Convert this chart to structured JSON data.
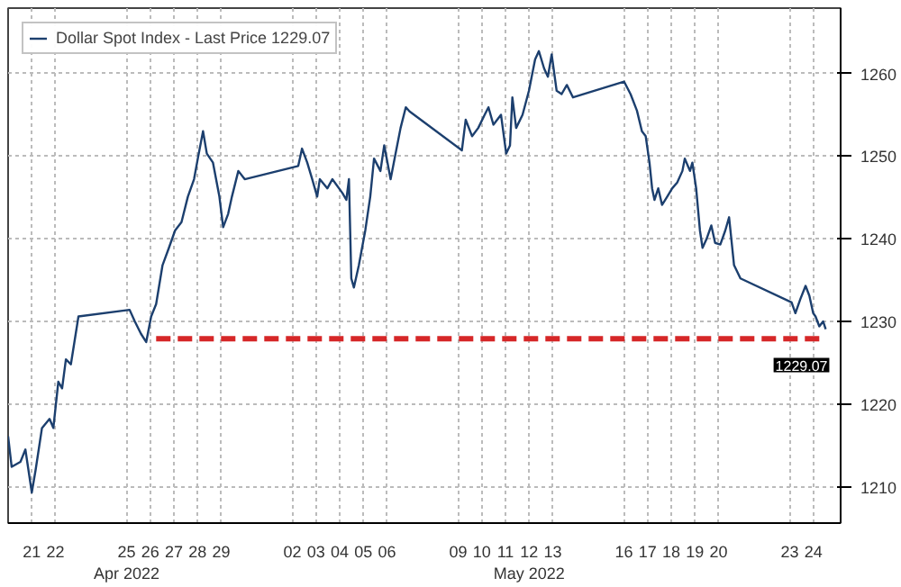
{
  "chart_data": {
    "type": "line",
    "xlim": [
      "2022-04-20T00:00",
      "2022-05-25T03:36"
    ],
    "ylim": [
      1205.6,
      1267.9
    ],
    "xticks": [
      {
        "value": "2022-04-21",
        "label": "21"
      },
      {
        "value": "2022-04-22",
        "label": "22"
      },
      {
        "value": "2022-04-25",
        "label": "25\nApr 2022"
      },
      {
        "value": "2022-04-26",
        "label": "26"
      },
      {
        "value": "2022-04-27",
        "label": "27"
      },
      {
        "value": "2022-04-28",
        "label": "28"
      },
      {
        "value": "2022-04-29",
        "label": "29"
      },
      {
        "value": "2022-05-02",
        "label": "02"
      },
      {
        "value": "2022-05-03",
        "label": "03"
      },
      {
        "value": "2022-05-04",
        "label": "04"
      },
      {
        "value": "2022-05-05",
        "label": "05"
      },
      {
        "value": "2022-05-06",
        "label": "06"
      },
      {
        "value": "2022-05-09",
        "label": "09"
      },
      {
        "value": "2022-05-10",
        "label": "10"
      },
      {
        "value": "2022-05-11",
        "label": "11"
      },
      {
        "value": "2022-05-12",
        "label": "12\nMay 2022"
      },
      {
        "value": "2022-05-13",
        "label": "13"
      },
      {
        "value": "2022-05-16",
        "label": "16"
      },
      {
        "value": "2022-05-17",
        "label": "17"
      },
      {
        "value": "2022-05-18",
        "label": "18"
      },
      {
        "value": "2022-05-19",
        "label": "19"
      },
      {
        "value": "2022-05-20",
        "label": "20"
      },
      {
        "value": "2022-05-23",
        "label": "23"
      },
      {
        "value": "2022-05-24",
        "label": "24"
      }
    ],
    "yticks": [
      1210,
      1220,
      1230,
      1240,
      1250,
      1260
    ],
    "grid": true,
    "legend": "top left",
    "series": [
      {
        "name": "Dollar Spot Index - Last Price 1229.07",
        "color": "#1c3f6e",
        "x": [
          "2022-04-20T00:00",
          "2022-04-20T03:36",
          "2022-04-20T12:29",
          "2022-04-20T17:31",
          "2022-04-21T00:00",
          "2022-04-21T03:50",
          "2022-04-21T10:19",
          "2022-04-21T18:00",
          "2022-04-21T21:50",
          "2022-04-22T02:53",
          "2022-04-22T06:43",
          "2022-04-22T10:34",
          "2022-04-22T15:36",
          "2022-04-22T23:17",
          "2022-04-25T03:07",
          "2022-04-25T08:24",
          "2022-04-25T14:38",
          "2022-04-25T19:55",
          "2022-04-26T00:58",
          "2022-04-26T06:00",
          "2022-04-26T12:29",
          "2022-04-26T18:58",
          "2022-04-27T01:12",
          "2022-04-27T07:41",
          "2022-04-27T14:10",
          "2022-04-27T20:24",
          "2022-04-28T00:14",
          "2022-04-28T05:31",
          "2022-04-28T09:22",
          "2022-04-28T15:36",
          "2022-04-28T22:05",
          "2022-04-29T01:55",
          "2022-04-29T06:58",
          "2022-04-29T10:48",
          "2022-04-29T17:17",
          "2022-04-29T23:46",
          "2022-05-02T06:00",
          "2022-05-02T09:50",
          "2022-05-02T15:07",
          "2022-05-02T20:10",
          "2022-05-03T01:12",
          "2022-05-03T03:50",
          "2022-05-03T11:31",
          "2022-05-03T16:34",
          "2022-05-04T02:53",
          "2022-05-04T06:43",
          "2022-05-04T09:22",
          "2022-05-04T11:46",
          "2022-05-04T14:24",
          "2022-05-04T19:26",
          "2022-05-05T01:55",
          "2022-05-05T06:58",
          "2022-05-05T10:48",
          "2022-05-05T17:17",
          "2022-05-05T21:07",
          "2022-05-06T03:36",
          "2022-05-06T08:38",
          "2022-05-06T13:41",
          "2022-05-06T18:58",
          "2022-05-06T22:48",
          "2022-05-09T03:50",
          "2022-05-09T07:41",
          "2022-05-09T14:10",
          "2022-05-09T20:24",
          "2022-05-10T02:53",
          "2022-05-10T06:43",
          "2022-05-10T11:46",
          "2022-05-10T19:26",
          "2022-05-11T00:43",
          "2022-05-11T04:34",
          "2022-05-11T06:58",
          "2022-05-11T10:48",
          "2022-05-11T17:17",
          "2022-05-11T23:46",
          "2022-05-12T06:00",
          "2022-05-12T09:50",
          "2022-05-12T15:07",
          "2022-05-12T18:58",
          "2022-05-12T22:48",
          "2022-05-13T03:50",
          "2022-05-13T08:53",
          "2022-05-13T14:10",
          "2022-05-13T20:24",
          "2022-05-16T00:14",
          "2022-05-16T06:43",
          "2022-05-16T13:12",
          "2022-05-16T18:14",
          "2022-05-16T22:05",
          "2022-05-17T01:55",
          "2022-05-17T04:34",
          "2022-05-17T06:58",
          "2022-05-17T10:48",
          "2022-05-17T14:38",
          "2022-05-17T19:55",
          "2022-05-18T00:58",
          "2022-05-18T06:00",
          "2022-05-18T11:17",
          "2022-05-18T13:41",
          "2022-05-18T18:58",
          "2022-05-18T21:22",
          "2022-05-19T01:12",
          "2022-05-19T05:02",
          "2022-05-19T07:41",
          "2022-05-19T11:31",
          "2022-05-19T16:34",
          "2022-05-19T20:24",
          "2022-05-20T01:41",
          "2022-05-20T06:43",
          "2022-05-20T10:34",
          "2022-05-20T15:36",
          "2022-05-20T22:05",
          "2022-05-23T01:55",
          "2022-05-23T05:46",
          "2022-05-23T10:48",
          "2022-05-23T16:05",
          "2022-05-23T19:55",
          "2022-05-23T23:46",
          "2022-05-24T02:10",
          "2022-05-24T06:00",
          "2022-05-24T09:50",
          "2022-05-24T12:29"
        ],
        "values": [
          1216.1,
          1212.4,
          1213.0,
          1214.5,
          1209.3,
          1212.0,
          1217.1,
          1218.2,
          1217.1,
          1222.7,
          1221.9,
          1225.4,
          1224.8,
          1230.6,
          1231.4,
          1230.0,
          1228.5,
          1227.5,
          1230.6,
          1232.1,
          1236.8,
          1238.9,
          1241.0,
          1242.0,
          1245.1,
          1247.2,
          1249.7,
          1253.0,
          1250.3,
          1249.2,
          1245.1,
          1241.4,
          1243.0,
          1245.1,
          1248.2,
          1247.2,
          1248.8,
          1250.9,
          1249.2,
          1247.2,
          1245.1,
          1247.2,
          1246.1,
          1247.2,
          1245.5,
          1244.7,
          1247.2,
          1235.2,
          1234.1,
          1236.8,
          1241.0,
          1245.1,
          1249.7,
          1248.2,
          1251.3,
          1247.2,
          1250.3,
          1253.4,
          1255.9,
          1255.4,
          1250.7,
          1254.4,
          1252.4,
          1253.4,
          1255.0,
          1255.9,
          1253.8,
          1255.0,
          1250.3,
          1251.3,
          1257.1,
          1253.4,
          1255.0,
          1257.9,
          1261.7,
          1262.7,
          1260.6,
          1259.6,
          1262.3,
          1257.9,
          1257.5,
          1258.6,
          1257.1,
          1259.0,
          1257.5,
          1255.5,
          1253.0,
          1252.4,
          1249.2,
          1246.1,
          1244.7,
          1246.1,
          1244.1,
          1245.1,
          1246.1,
          1246.8,
          1248.2,
          1249.7,
          1248.2,
          1249.2,
          1246.1,
          1241.0,
          1238.9,
          1239.9,
          1241.6,
          1239.5,
          1239.3,
          1241.0,
          1242.6,
          1236.8,
          1235.2,
          1232.3,
          1231.0,
          1232.7,
          1234.3,
          1233.1,
          1231.0,
          1230.6,
          1229.4,
          1230.0,
          1229.07
        ],
        "value_labels": [
          null,
          null,
          null,
          null,
          null,
          null,
          null,
          null,
          null,
          null,
          null,
          null,
          null,
          null,
          null,
          null,
          null,
          null,
          null,
          null,
          null,
          null,
          null,
          null,
          null,
          null,
          null,
          null,
          null,
          null,
          null,
          null,
          null,
          null,
          null,
          null,
          null,
          null,
          null,
          null,
          null,
          null,
          null,
          null,
          null,
          null,
          null,
          null,
          null,
          null,
          null,
          null,
          null,
          null,
          null,
          null,
          null,
          null,
          null,
          null,
          null,
          null,
          null,
          null,
          null,
          null,
          null,
          null,
          null,
          null,
          null,
          null,
          null,
          null,
          null,
          null,
          null,
          null,
          null,
          null,
          null,
          null,
          null,
          null,
          null,
          null,
          null,
          null,
          null,
          null,
          null,
          null,
          null,
          null,
          null,
          null,
          null,
          null,
          null,
          null,
          null,
          null,
          null,
          null,
          null,
          null,
          null,
          null,
          null,
          null,
          null,
          null,
          null,
          null,
          null,
          null,
          null,
          null,
          null,
          null,
          "1229.07"
        ]
      },
      {
        "color": "#d62728",
        "type": "line",
        "line_style": "dashed",
        "x": [
          "2022-04-26T06:00",
          "2022-05-24T06:00"
        ],
        "values": [
          1227.9,
          1227.9
        ]
      }
    ]
  }
}
